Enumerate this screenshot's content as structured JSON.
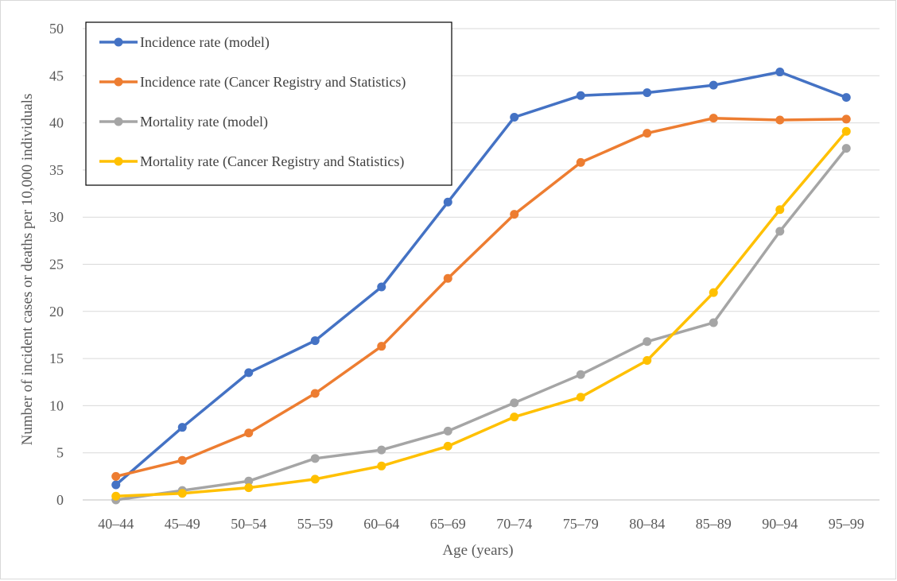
{
  "chart_data": {
    "type": "line",
    "title": "",
    "xlabel": "Age (years)",
    "ylabel": "Number of incident cases or deaths per 10,000 individuals",
    "categories": [
      "40–44",
      "45–49",
      "50–54",
      "55–59",
      "60–64",
      "65–69",
      "70–74",
      "75–79",
      "80–84",
      "85–89",
      "90–94",
      "95–99"
    ],
    "ylim": [
      0,
      50
    ],
    "yticks": [
      0,
      5,
      10,
      15,
      20,
      25,
      30,
      35,
      40,
      45,
      50
    ],
    "grid": true,
    "legend_position": "top-left",
    "series": [
      {
        "name": "Incidence rate (model)",
        "color": "#4472c4",
        "values": [
          1.6,
          7.7,
          13.5,
          16.9,
          22.6,
          31.6,
          40.6,
          42.9,
          43.2,
          44.0,
          45.4,
          42.7
        ]
      },
      {
        "name": "Incidence rate (Cancer Registry and Statistics)",
        "color": "#ed7d31",
        "values": [
          2.5,
          4.2,
          7.1,
          11.3,
          16.3,
          23.5,
          30.3,
          35.8,
          38.9,
          40.5,
          40.3,
          40.4
        ]
      },
      {
        "name": "Mortality rate (model)",
        "color": "#a5a5a5",
        "values": [
          0.0,
          1.0,
          2.0,
          4.4,
          5.3,
          7.3,
          10.3,
          13.3,
          16.8,
          18.8,
          28.5,
          37.3
        ]
      },
      {
        "name": "Mortality rate (Cancer Registry and Statistics)",
        "color": "#ffc000",
        "values": [
          0.4,
          0.7,
          1.3,
          2.2,
          3.6,
          5.7,
          8.8,
          10.9,
          14.8,
          22.0,
          30.8,
          39.1
        ]
      }
    ]
  }
}
